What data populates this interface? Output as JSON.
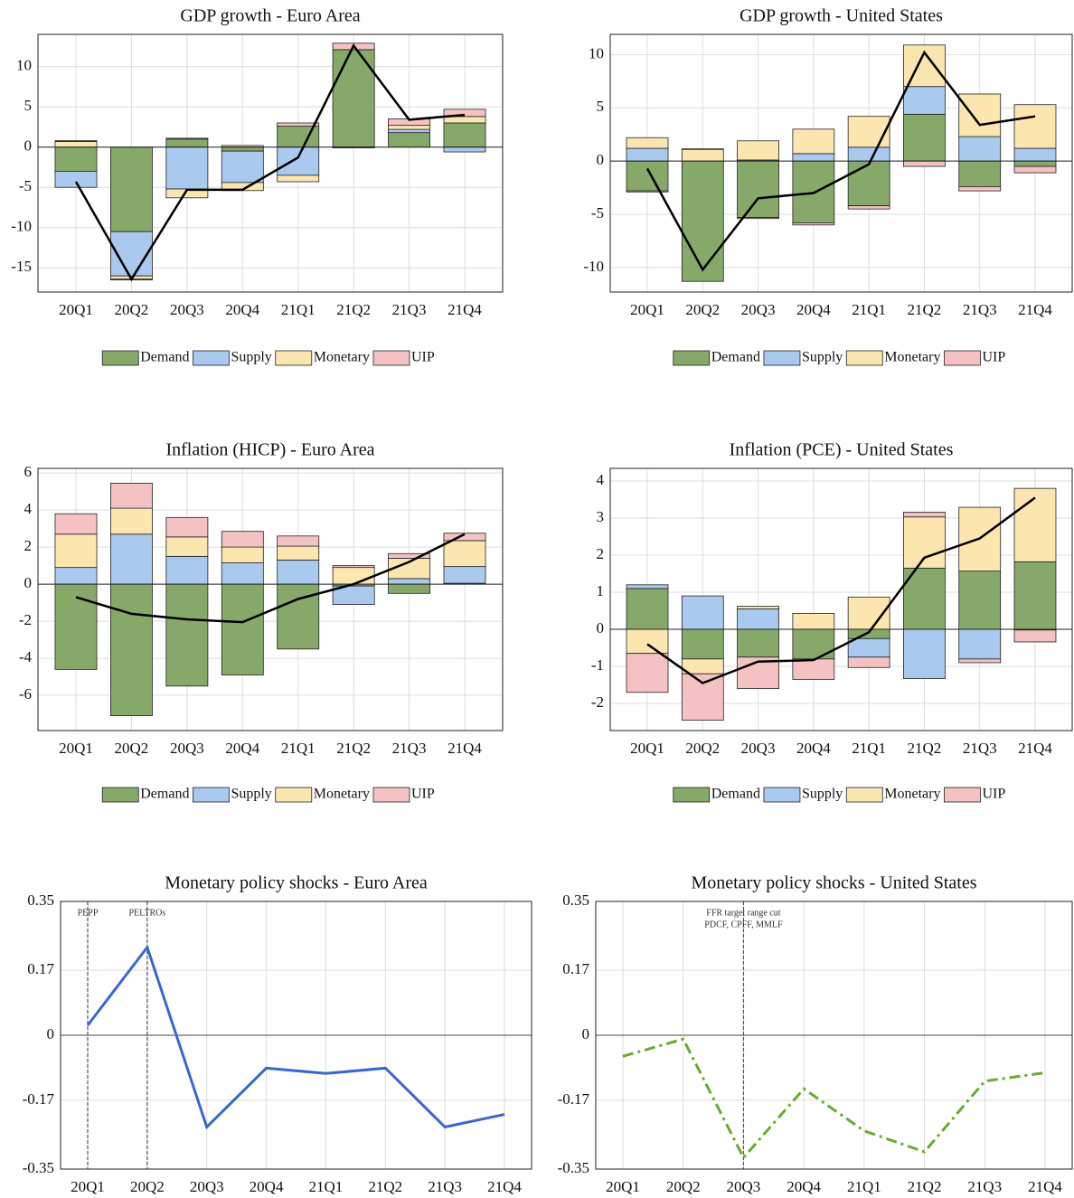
{
  "chart_data": [
    {
      "type": "bar",
      "stacked": true,
      "title": "GDP growth - Euro Area",
      "categories": [
        "20Q1",
        "20Q2",
        "20Q3",
        "20Q4",
        "21Q1",
        "21Q2",
        "21Q3",
        "21Q4"
      ],
      "series": [
        {
          "name": "Demand",
          "color": "#86a96a",
          "values": [
            -3.0,
            -10.5,
            1.0,
            -0.5,
            2.6,
            12.1,
            1.8,
            3.0
          ]
        },
        {
          "name": "Supply",
          "color": "#a9c9ef",
          "values": [
            -2.0,
            -5.5,
            -5.2,
            -3.9,
            -3.5,
            -0.1,
            0.4,
            -0.6
          ]
        },
        {
          "name": "Monetary",
          "color": "#fbe6b0",
          "values": [
            0.7,
            -0.4,
            -1.1,
            -1.0,
            -0.8,
            0.0,
            0.5,
            0.8
          ]
        },
        {
          "name": "UIP",
          "color": "#f4c2c2",
          "values": [
            0.1,
            -0.1,
            0.1,
            0.2,
            0.4,
            0.8,
            0.8,
            0.9
          ]
        }
      ],
      "line": {
        "color": "#000000",
        "values": [
          -4.3,
          -16.4,
          -5.3,
          -5.3,
          -1.3,
          12.6,
          3.4,
          4.0
        ]
      },
      "ylim": [
        -18,
        14
      ],
      "yticks": [
        -15,
        -10,
        -5,
        0,
        5,
        10
      ],
      "grid": true,
      "legend": "bottom"
    },
    {
      "type": "bar",
      "stacked": true,
      "title": "GDP growth - United States",
      "categories": [
        "20Q1",
        "20Q2",
        "20Q3",
        "20Q4",
        "21Q1",
        "21Q2",
        "21Q3",
        "21Q4"
      ],
      "series": [
        {
          "name": "Demand",
          "color": "#86a96a",
          "values": [
            -2.8,
            -11.3,
            -5.3,
            -5.8,
            -4.2,
            4.4,
            -2.4,
            -0.5
          ]
        },
        {
          "name": "Supply",
          "color": "#a9c9ef",
          "values": [
            1.2,
            0.0,
            0.1,
            0.7,
            1.3,
            2.6,
            2.3,
            1.2
          ]
        },
        {
          "name": "Monetary",
          "color": "#fbe6b0",
          "values": [
            1.0,
            1.1,
            1.8,
            2.3,
            2.9,
            3.9,
            4.0,
            4.1
          ]
        },
        {
          "name": "UIP",
          "color": "#f4c2c2",
          "values": [
            -0.1,
            0.05,
            -0.1,
            -0.2,
            -0.3,
            -0.5,
            -0.4,
            -0.6
          ]
        }
      ],
      "line": {
        "color": "#000000",
        "values": [
          -0.7,
          -10.2,
          -3.5,
          -3.0,
          -0.3,
          10.2,
          3.4,
          4.2
        ]
      },
      "ylim": [
        -12.3,
        11.9
      ],
      "yticks": [
        -10,
        -5,
        0,
        5,
        10
      ],
      "grid": true,
      "legend": "bottom"
    },
    {
      "type": "bar",
      "stacked": true,
      "title": "Inflation (HICP) - Euro Area",
      "categories": [
        "20Q1",
        "20Q2",
        "20Q3",
        "20Q4",
        "21Q1",
        "21Q2",
        "21Q3",
        "21Q4"
      ],
      "series": [
        {
          "name": "Demand",
          "color": "#86a96a",
          "values": [
            -4.6,
            -7.1,
            -5.5,
            -4.9,
            -3.5,
            -0.1,
            -0.5,
            0.05
          ]
        },
        {
          "name": "Supply",
          "color": "#a9c9ef",
          "values": [
            0.9,
            2.7,
            1.5,
            1.15,
            1.3,
            -1.0,
            0.3,
            0.9
          ]
        },
        {
          "name": "Monetary",
          "color": "#fbe6b0",
          "values": [
            1.8,
            1.4,
            1.05,
            0.85,
            0.75,
            0.9,
            1.1,
            1.4
          ]
        },
        {
          "name": "UIP",
          "color": "#f4c2c2",
          "values": [
            1.1,
            1.35,
            1.05,
            0.85,
            0.55,
            0.1,
            0.25,
            0.4
          ]
        }
      ],
      "line": {
        "color": "#000000",
        "values": [
          -0.7,
          -1.6,
          -1.9,
          -2.05,
          -0.8,
          0.0,
          1.2,
          2.7
        ]
      },
      "ylim": [
        -7.9,
        6.25
      ],
      "yticks": [
        -6,
        -4,
        -2,
        0,
        2,
        4,
        6
      ],
      "grid": true,
      "legend": "bottom"
    },
    {
      "type": "bar",
      "stacked": true,
      "title": "Inflation (PCE) - United States",
      "categories": [
        "20Q1",
        "20Q2",
        "20Q3",
        "20Q4",
        "21Q1",
        "21Q2",
        "21Q3",
        "21Q4"
      ],
      "series": [
        {
          "name": "Demand",
          "color": "#86a96a",
          "values": [
            1.1,
            -0.8,
            -0.75,
            -0.8,
            -0.25,
            1.65,
            1.57,
            1.82
          ]
        },
        {
          "name": "Supply",
          "color": "#a9c9ef",
          "values": [
            0.1,
            0.9,
            0.55,
            0.0,
            -0.5,
            -1.33,
            -0.8,
            -0.02
          ]
        },
        {
          "name": "Monetary",
          "color": "#fbe6b0",
          "values": [
            -0.65,
            -0.4,
            0.07,
            0.43,
            0.87,
            1.38,
            1.72,
            1.98
          ]
        },
        {
          "name": "UIP",
          "color": "#f4c2c2",
          "values": [
            -1.05,
            -1.25,
            -0.85,
            -0.55,
            -0.28,
            0.13,
            -0.1,
            -0.32
          ]
        }
      ],
      "line": {
        "color": "#000000",
        "values": [
          -0.4,
          -1.45,
          -0.87,
          -0.83,
          -0.08,
          1.93,
          2.45,
          3.55
        ]
      },
      "ylim": [
        -2.73,
        4.34
      ],
      "yticks": [
        -2,
        -1,
        0,
        1,
        2,
        3,
        4
      ],
      "grid": true,
      "legend": "bottom"
    },
    {
      "type": "line",
      "title": "Monetary policy shocks - Euro Area",
      "categories": [
        "20Q1",
        "20Q2",
        "20Q3",
        "20Q4",
        "21Q1",
        "21Q2",
        "21Q3",
        "21Q4"
      ],
      "series": [
        {
          "color": "#3a66d4",
          "style": "solid",
          "values": [
            0.026,
            0.23,
            -0.24,
            -0.086,
            -0.1,
            -0.086,
            -0.24,
            -0.207
          ]
        }
      ],
      "annotations": [
        {
          "x": "20Q1",
          "text": [
            "PEPP"
          ]
        },
        {
          "x": "20Q2",
          "text": [
            "PELTROs"
          ]
        }
      ],
      "ylim": [
        -0.35,
        0.35
      ],
      "yticks": [
        -0.35,
        -0.17,
        0,
        0.17,
        0.35
      ],
      "grid": true
    },
    {
      "type": "line",
      "title": "Monetary policy shocks - United States",
      "categories": [
        "20Q1",
        "20Q2",
        "20Q3",
        "20Q4",
        "21Q1",
        "21Q2",
        "21Q3",
        "21Q4"
      ],
      "series": [
        {
          "color": "#6aaa2e",
          "style": "dashdot",
          "values": [
            -0.055,
            -0.01,
            -0.32,
            -0.14,
            -0.25,
            -0.305,
            -0.12,
            -0.098
          ]
        }
      ],
      "annotations": [
        {
          "x": "20Q3",
          "text": [
            "FFR target range cut",
            "PDCF, CPFF, MMLF"
          ]
        }
      ],
      "ylim": [
        -0.35,
        0.35
      ],
      "yticks": [
        -0.35,
        -0.17,
        0,
        0.17,
        0.35
      ],
      "grid": true
    }
  ]
}
